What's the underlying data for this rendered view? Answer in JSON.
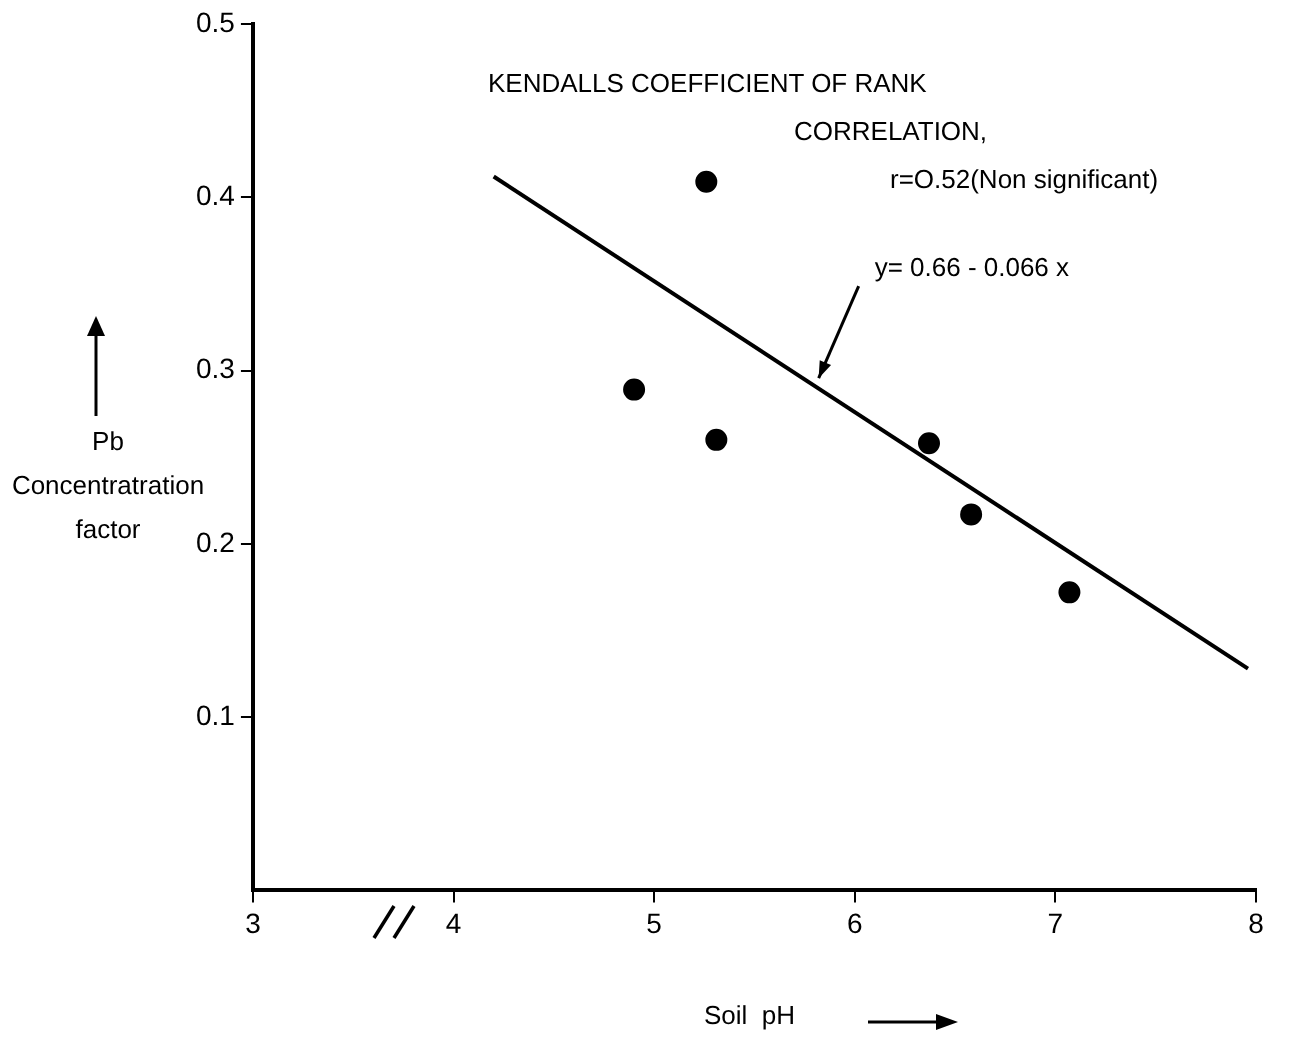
{
  "chart_data": {
    "type": "scatter",
    "xlabel": "Soil  pH",
    "ylabel": "Pb\nConcentratration\nfactor",
    "xlim": [
      3,
      8
    ],
    "xticks": [
      3,
      4,
      5,
      6,
      7,
      8
    ],
    "ylim": [
      0,
      0.5
    ],
    "yticks": [
      0.1,
      0.2,
      0.3,
      0.4,
      0.5
    ],
    "series": [
      {
        "marker": "circle",
        "color": "#000000",
        "x": [
          4.9,
          5.26,
          5.31,
          6.37,
          6.58,
          7.07
        ],
        "values": [
          0.289,
          0.409,
          0.26,
          0.258,
          0.217,
          0.172
        ]
      },
      {
        "type": "line",
        "marker": "none",
        "color": "#000000",
        "x": [
          4.2,
          7.96
        ],
        "values": [
          0.412,
          0.128
        ]
      }
    ],
    "grid": false,
    "legend": false,
    "annotations": [
      "KENDALLS COEFFICIENT OF RANK",
      "CORRELATION,",
      "r=O.52(Non significant)",
      {
        "text": "y= 0.66 - 0.066 x",
        "x": 5.8,
        "y": 0.291
      }
    ]
  }
}
